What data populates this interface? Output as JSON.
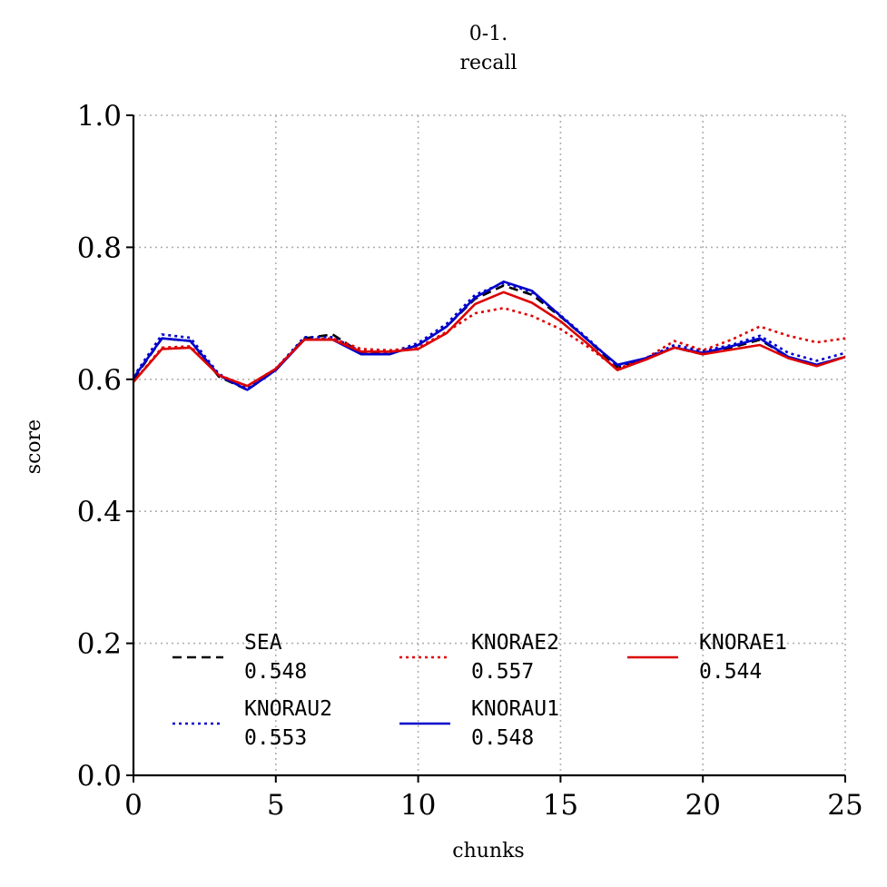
{
  "chart_data": {
    "type": "line",
    "title": "0-1.",
    "subtitle": "recall",
    "xlabel": "chunks",
    "ylabel": "score",
    "xlim": [
      0,
      25
    ],
    "ylim": [
      0,
      1
    ],
    "xticks": [
      "0",
      "5",
      "10",
      "15",
      "20",
      "25"
    ],
    "yticks": [
      "0.0",
      "0.2",
      "0.4",
      "0.6",
      "0.8",
      "1.0"
    ],
    "grid": true,
    "legend_placement": "lower-center",
    "x": [
      0,
      1,
      2,
      3,
      4,
      5,
      6,
      7,
      8,
      9,
      10,
      11,
      12,
      13,
      14,
      15,
      16,
      17,
      18,
      19,
      20,
      21,
      22,
      23,
      24,
      25
    ],
    "series": [
      {
        "name": "SEA",
        "score": "0.548",
        "color": "#000000",
        "style": "dashed",
        "values": [
          0.6,
          0.662,
          0.658,
          0.604,
          0.584,
          0.614,
          0.662,
          0.668,
          0.64,
          0.638,
          0.652,
          0.68,
          0.722,
          0.742,
          0.728,
          0.695,
          0.658,
          0.618,
          0.63,
          0.648,
          0.638,
          0.648,
          0.66,
          0.634,
          0.622,
          0.634
        ]
      },
      {
        "name": "KNORAU2",
        "score": "0.553",
        "color": "#0000cc",
        "style": "dotted",
        "values": [
          0.604,
          0.668,
          0.663,
          0.608,
          0.586,
          0.616,
          0.664,
          0.664,
          0.642,
          0.64,
          0.655,
          0.684,
          0.728,
          0.746,
          0.732,
          0.697,
          0.66,
          0.62,
          0.632,
          0.652,
          0.643,
          0.652,
          0.666,
          0.64,
          0.628,
          0.64
        ]
      },
      {
        "name": "KNORAE2",
        "score": "0.557",
        "color": "#dd0000",
        "style": "dotted",
        "values": [
          0.596,
          0.648,
          0.65,
          0.606,
          0.59,
          0.616,
          0.66,
          0.662,
          0.646,
          0.644,
          0.648,
          0.672,
          0.7,
          0.708,
          0.696,
          0.676,
          0.648,
          0.616,
          0.632,
          0.658,
          0.644,
          0.66,
          0.68,
          0.666,
          0.656,
          0.662
        ]
      },
      {
        "name": "KNORAU1",
        "score": "0.548",
        "color": "#0000cc",
        "style": "solid",
        "values": [
          0.602,
          0.662,
          0.658,
          0.606,
          0.584,
          0.614,
          0.66,
          0.66,
          0.638,
          0.638,
          0.652,
          0.68,
          0.724,
          0.748,
          0.734,
          0.696,
          0.658,
          0.622,
          0.632,
          0.648,
          0.64,
          0.65,
          0.662,
          0.634,
          0.622,
          0.634
        ]
      },
      {
        "name": "KNORAE1",
        "score": "0.544",
        "color": "#dd0000",
        "style": "solid",
        "values": [
          0.596,
          0.646,
          0.648,
          0.606,
          0.59,
          0.616,
          0.66,
          0.66,
          0.642,
          0.642,
          0.646,
          0.67,
          0.714,
          0.732,
          0.716,
          0.688,
          0.652,
          0.614,
          0.63,
          0.648,
          0.638,
          0.645,
          0.652,
          0.632,
          0.62,
          0.634
        ]
      }
    ]
  }
}
